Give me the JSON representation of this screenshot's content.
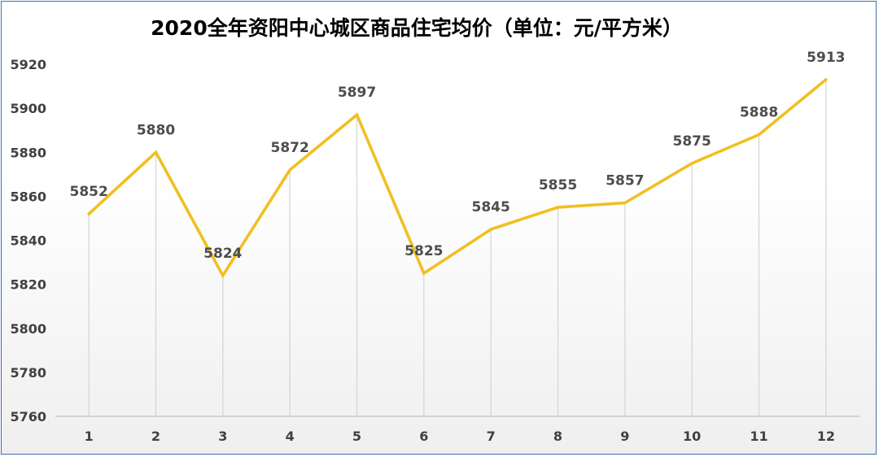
{
  "chart_data": {
    "type": "line",
    "title": "2020全年资阳中心城区商品住宅均价（单位：元/平方米）",
    "xlabel": "",
    "ylabel": "",
    "categories": [
      "1",
      "2",
      "3",
      "4",
      "5",
      "6",
      "7",
      "8",
      "9",
      "10",
      "11",
      "12"
    ],
    "series": [
      {
        "values": [
          5852,
          5880,
          5824,
          5872,
          5897,
          5825,
          5845,
          5855,
          5857,
          5875,
          5888,
          5913
        ],
        "color": "#f0c020"
      }
    ],
    "ylim": [
      5760,
      5920
    ],
    "yticks": [
      5760,
      5780,
      5800,
      5820,
      5840,
      5860,
      5880,
      5900,
      5920
    ],
    "grid": false,
    "drop_lines": true,
    "data_labels": true,
    "legend": "none",
    "colors": {
      "frame_border": "#3d6fb4",
      "line": "#f0c020",
      "drop_line": "#d4d4d4",
      "label_text": "#4d4d4d"
    }
  }
}
